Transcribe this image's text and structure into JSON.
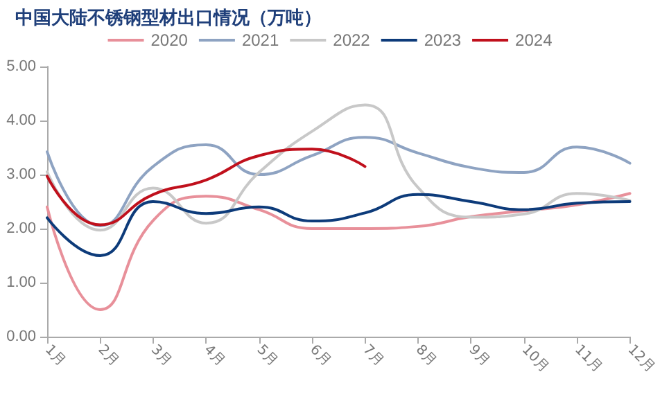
{
  "chart_data": {
    "type": "line",
    "title": "中国大陆不锈钢型材出口情况（万吨）",
    "categories": [
      "1月",
      "2月",
      "3月",
      "4月",
      "5月",
      "6月",
      "7月",
      "8月",
      "9月",
      "10月",
      "11月",
      "12月"
    ],
    "series": [
      {
        "name": "2020",
        "color": "#e8909a",
        "values": [
          2.4,
          0.5,
          2.15,
          2.6,
          2.35,
          2.0,
          2.0,
          2.04,
          2.22,
          2.33,
          2.44,
          2.65
        ]
      },
      {
        "name": "2021",
        "color": "#8ea3c2",
        "values": [
          3.42,
          2.05,
          3.15,
          3.55,
          3.0,
          3.35,
          3.69,
          3.4,
          3.13,
          3.04,
          3.51,
          3.21
        ]
      },
      {
        "name": "2022",
        "color": "#c8c8c8",
        "values": [
          3.05,
          1.97,
          2.75,
          2.1,
          3.04,
          3.8,
          4.29,
          2.76,
          2.21,
          2.27,
          2.65,
          2.52
        ]
      },
      {
        "name": "2023",
        "color": "#0d3b7a",
        "values": [
          2.2,
          1.5,
          2.5,
          2.28,
          2.4,
          2.14,
          2.29,
          2.63,
          2.5,
          2.35,
          2.47,
          2.5
        ]
      },
      {
        "name": "2024",
        "color": "#c0101c",
        "values": [
          2.97,
          2.07,
          2.63,
          2.9,
          3.35,
          3.47,
          3.15,
          null,
          null,
          null,
          null,
          null
        ]
      }
    ],
    "ylim": [
      0,
      5
    ],
    "yticks": [
      {
        "value": 0,
        "label": "0.00"
      },
      {
        "value": 1,
        "label": "1.00"
      },
      {
        "value": 2,
        "label": "2.00"
      },
      {
        "value": 3,
        "label": "3.00"
      },
      {
        "value": 4,
        "label": "4.00"
      },
      {
        "value": 5,
        "label": "5.00"
      }
    ],
    "grid": false,
    "legend": "top",
    "marker": "none",
    "line_style": "solid"
  }
}
